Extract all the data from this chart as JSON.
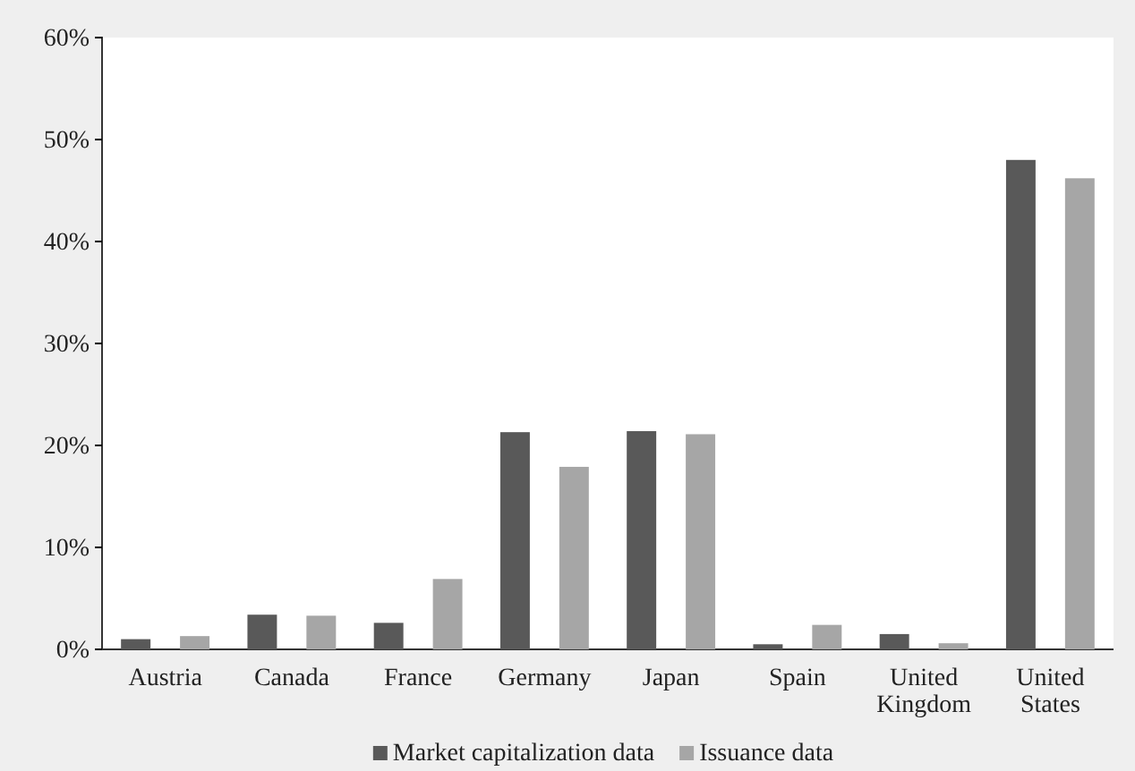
{
  "chart_data": {
    "type": "bar",
    "categories": [
      "Austria",
      "Canada",
      "France",
      "Germany",
      "Japan",
      "Spain",
      "United Kingdom",
      "United States"
    ],
    "series": [
      {
        "name": "Market capitalization data",
        "color": "#595959",
        "values": [
          1.0,
          3.4,
          2.6,
          21.3,
          21.4,
          0.5,
          1.5,
          48.0
        ]
      },
      {
        "name": "Issuance data",
        "color": "#a6a6a6",
        "values": [
          1.3,
          3.3,
          6.9,
          17.9,
          21.1,
          2.4,
          0.6,
          46.2
        ]
      }
    ],
    "ylim": [
      0,
      60
    ],
    "yticks": [
      {
        "value": 0,
        "label": "0%"
      },
      {
        "value": 10,
        "label": "10%"
      },
      {
        "value": 20,
        "label": "20%"
      },
      {
        "value": 30,
        "label": "30%"
      },
      {
        "value": 40,
        "label": "40%"
      },
      {
        "value": 50,
        "label": "50%"
      },
      {
        "value": 60,
        "label": "60%"
      }
    ],
    "grid": false,
    "legend": "bottom"
  }
}
